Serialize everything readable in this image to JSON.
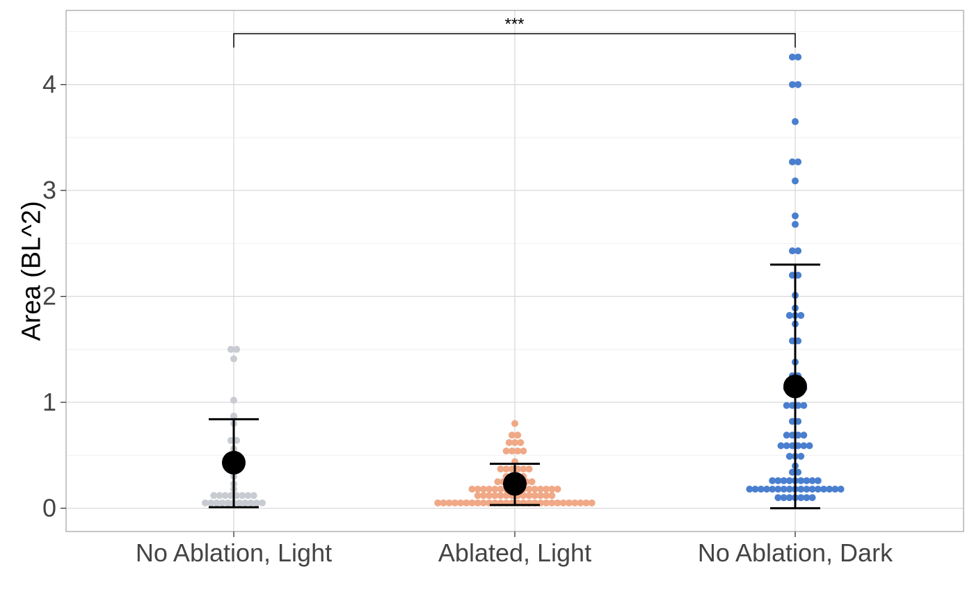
{
  "chart_data": {
    "type": "scatter",
    "subtype": "beeswarm with mean and error bars",
    "ylabel": "Area (BL^2)",
    "xlabel": "",
    "ylim": [
      -0.22,
      4.7
    ],
    "yticks": [
      0,
      1,
      2,
      3,
      4
    ],
    "grid": true,
    "categories": [
      "No Ablation, Light",
      "Ablated, Light",
      "No Ablation, Dark"
    ],
    "colors": [
      "#c8ccd2",
      "#f0a886",
      "#4a7fcf"
    ],
    "series": [
      {
        "category": "No Ablation, Light",
        "points": [
          1.5,
          1.5,
          1.41,
          1.02,
          0.87,
          0.8,
          0.64,
          0.64,
          0.56,
          0.5,
          0.45,
          0.45,
          0.43,
          0.43,
          0.4,
          0.3,
          0.23,
          0.18,
          0.12,
          0.12,
          0.12,
          0.12,
          0.12,
          0.12,
          0.12,
          0.12,
          0.05,
          0.05,
          0.05,
          0.05,
          0.05,
          0.05,
          0.05,
          0.05,
          0.05,
          0.05,
          0.05
        ],
        "mean": 0.43,
        "error_low": 0.01,
        "error_high": 0.84
      },
      {
        "category": "Ablated, Light",
        "points": [
          0.8,
          0.69,
          0.69,
          0.62,
          0.62,
          0.62,
          0.54,
          0.54,
          0.54,
          0.54,
          0.44,
          0.37,
          0.37,
          0.37,
          0.37,
          0.37,
          0.37,
          0.3,
          0.3,
          0.3,
          0.3,
          0.25,
          0.25,
          0.25,
          0.25,
          0.25,
          0.25,
          0.25,
          0.18,
          0.18,
          0.18,
          0.18,
          0.18,
          0.18,
          0.18,
          0.18,
          0.18,
          0.18,
          0.18,
          0.18,
          0.18,
          0.18,
          0.18,
          0.18,
          0.12,
          0.12,
          0.12,
          0.12,
          0.12,
          0.12,
          0.12,
          0.12,
          0.12,
          0.12,
          0.12,
          0.12,
          0.12,
          0.12,
          0.05,
          0.05,
          0.05,
          0.05,
          0.05,
          0.05,
          0.05,
          0.05,
          0.05,
          0.05,
          0.05,
          0.05,
          0.05,
          0.05,
          0.05,
          0.05,
          0.05,
          0.05,
          0.05,
          0.05,
          0.05,
          0.05,
          0.05,
          0.05,
          0.05,
          0.05,
          0.05,
          0.05
        ],
        "mean": 0.23,
        "error_low": 0.03,
        "error_high": 0.42
      },
      {
        "category": "No Ablation, Dark",
        "points": [
          4.26,
          4.26,
          4.0,
          4.0,
          3.65,
          3.27,
          3.27,
          3.09,
          2.76,
          2.68,
          2.43,
          2.43,
          2.2,
          2.2,
          2.01,
          1.89,
          1.82,
          1.82,
          1.82,
          1.74,
          1.58,
          1.58,
          1.38,
          1.25,
          1.25,
          1.13,
          1.13,
          1.13,
          1.13,
          0.97,
          0.97,
          0.97,
          0.97,
          0.82,
          0.82,
          0.69,
          0.69,
          0.69,
          0.69,
          0.59,
          0.59,
          0.59,
          0.59,
          0.59,
          0.59,
          0.49,
          0.49,
          0.49,
          0.4,
          0.34,
          0.34,
          0.26,
          0.26,
          0.26,
          0.26,
          0.26,
          0.26,
          0.26,
          0.26,
          0.26,
          0.18,
          0.18,
          0.18,
          0.18,
          0.18,
          0.18,
          0.18,
          0.18,
          0.18,
          0.18,
          0.18,
          0.18,
          0.18,
          0.18,
          0.18,
          0.18,
          0.18,
          0.1,
          0.1,
          0.1,
          0.1,
          0.1,
          0.1,
          0.1
        ],
        "mean": 1.15,
        "error_low": 0.0,
        "error_high": 2.3
      }
    ],
    "annotations": [
      {
        "text": "***",
        "from_category": "No Ablation, Light",
        "to_category": "No Ablation, Dark",
        "y": 4.48
      }
    ]
  }
}
